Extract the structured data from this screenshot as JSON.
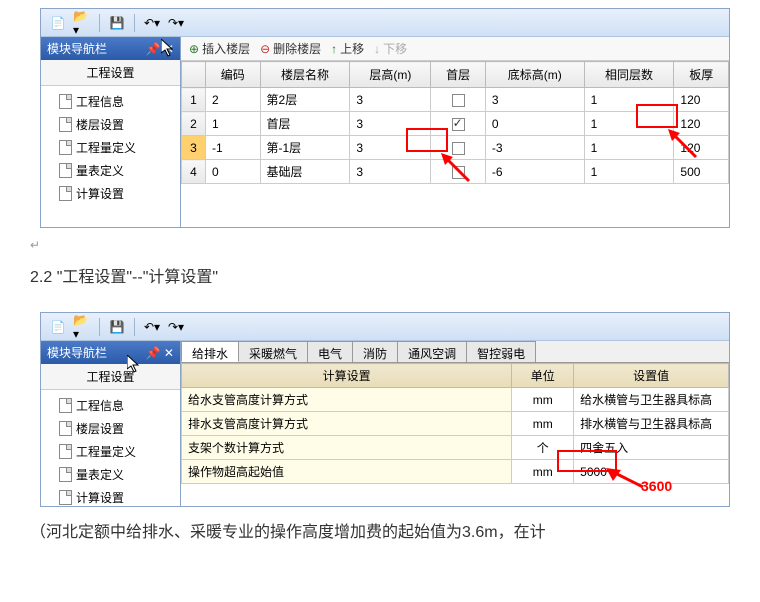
{
  "doc": {
    "heading": "2.2 \"工程设置\"--\"计算设置\"",
    "footer": "（河北定额中给排水、采暖专业的操作高度增加费的起始值为3.6m，在计"
  },
  "window1": {
    "nav_title": "模块导航栏",
    "nav_sub": "工程设置",
    "nav_items": [
      "工程信息",
      "楼层设置",
      "工程量定义",
      "量表定义",
      "计算设置"
    ],
    "actions": {
      "insert": "插入楼层",
      "delete": "删除楼层",
      "up": "上移",
      "down": "下移"
    },
    "columns": [
      "",
      "编码",
      "楼层名称",
      "层高(m)",
      "首层",
      "底标高(m)",
      "相同层数",
      "板厚"
    ],
    "rows": [
      {
        "n": "1",
        "code": "2",
        "name": "第2层",
        "h": "3",
        "first": false,
        "base": "3",
        "same": "1",
        "thk": "120"
      },
      {
        "n": "2",
        "code": "1",
        "name": "首层",
        "h": "3",
        "first": true,
        "base": "0",
        "same": "1",
        "thk": "120"
      },
      {
        "n": "3",
        "code": "-1",
        "name": "第-1层",
        "h": "3",
        "first": false,
        "base": "-3",
        "same": "1",
        "thk": "120",
        "sel": true
      },
      {
        "n": "4",
        "code": "0",
        "name": "基础层",
        "h": "3",
        "first": false,
        "base": "-6",
        "same": "1",
        "thk": "500"
      }
    ]
  },
  "window2": {
    "nav_title": "模块导航栏",
    "nav_sub": "工程设置",
    "nav_items": [
      "工程信息",
      "楼层设置",
      "工程量定义",
      "量表定义",
      "计算设置"
    ],
    "tabs": [
      "给排水",
      "采暖燃气",
      "电气",
      "消防",
      "通风空调",
      "智控弱电"
    ],
    "columns": [
      "计算设置",
      "单位",
      "设置值"
    ],
    "rows": [
      {
        "name": "给水支管高度计算方式",
        "unit": "mm",
        "val": "给水横管与卫生器具标高"
      },
      {
        "name": "排水支管高度计算方式",
        "unit": "mm",
        "val": "排水横管与卫生器具标高"
      },
      {
        "name": "支架个数计算方式",
        "unit": "个",
        "val": "四舍五入"
      },
      {
        "name": "操作物超高起始值",
        "unit": "mm",
        "val": "5000"
      }
    ],
    "annotation": "3600"
  },
  "colors": {
    "red": "#ff0000",
    "header_blue": "#2a5aa8"
  }
}
